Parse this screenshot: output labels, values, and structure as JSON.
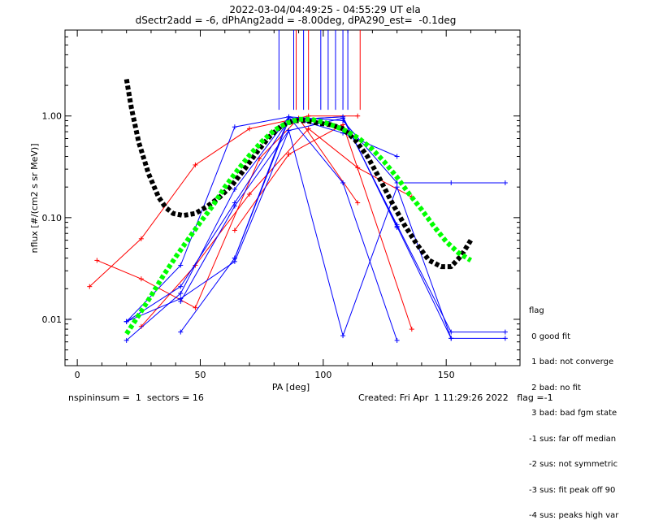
{
  "header": {
    "line1": "2022-03-04/04:49:25 - 04:55:29 UT ela",
    "line2": "dSectr2add = -6, dPhAng2add = -8.00deg, dPA290_est=  -0.1deg"
  },
  "footer": {
    "left": "nspininsum =  1  sectors = 16",
    "right": "Created: Fri Apr  1 11:29:26 2022   flag =-1"
  },
  "legend": {
    "title": "flag",
    "items": [
      " 0 good fit",
      " 1 bad: not converge",
      " 2 bad: no fit",
      " 3 bad: bad fgm state",
      "-1 sus: far off median",
      "-2 sus: not symmetric",
      "-3 sus: fit peak off 90",
      "-4 sus: peaks high var"
    ]
  },
  "colors": {
    "blue": "#0000ff",
    "red": "#ff0000",
    "green": "#00ff00",
    "black": "#000000"
  },
  "chart_data": {
    "type": "line",
    "xlabel": "PA [deg]",
    "ylabel": "nflux [#/(cm2 s sr MeV)]",
    "xlim": [
      -5,
      180
    ],
    "ylim": [
      0.0035,
      7
    ],
    "yscale": "log",
    "xticks": [
      0,
      50,
      100,
      150
    ],
    "yticks": [
      0.01,
      0.1,
      1.0
    ],
    "ytick_labels": [
      "0.01",
      "0.10",
      "1.00"
    ],
    "vlines": {
      "blue": [
        82,
        88,
        92,
        99,
        102,
        105,
        108,
        110
      ],
      "red": [
        89,
        94,
        115
      ]
    },
    "series": [
      {
        "color": "red",
        "x": [
          5,
          26,
          48,
          70,
          94,
          114
        ],
        "y": [
          0.021,
          0.062,
          0.33,
          0.75,
          1.0,
          1.0
        ]
      },
      {
        "color": "red",
        "x": [
          8,
          26,
          48,
          74,
          90,
          114
        ],
        "y": [
          0.038,
          0.025,
          0.013,
          0.38,
          0.95,
          0.14
        ]
      },
      {
        "color": "red",
        "x": [
          26,
          48,
          70,
          94,
          114,
          136
        ],
        "y": [
          0.0085,
          0.034,
          0.17,
          0.75,
          0.31,
          0.16
        ]
      },
      {
        "color": "red",
        "x": [
          64,
          86,
          108,
          136
        ],
        "y": [
          0.075,
          0.42,
          0.82,
          0.008
        ]
      },
      {
        "color": "blue",
        "x": [
          20,
          42,
          64,
          86,
          108,
          130
        ],
        "y": [
          0.0095,
          0.034,
          0.78,
          0.98,
          0.68,
          0.4
        ]
      },
      {
        "color": "blue",
        "x": [
          20,
          42,
          64,
          86,
          108,
          130,
          152,
          174
        ],
        "y": [
          0.0062,
          0.018,
          0.19,
          0.98,
          0.9,
          0.22,
          0.22,
          0.22
        ]
      },
      {
        "color": "blue",
        "x": [
          20,
          42,
          64,
          86,
          108,
          130
        ],
        "y": [
          0.0095,
          0.021,
          0.14,
          0.92,
          0.98,
          0.08
        ]
      },
      {
        "color": "blue",
        "x": [
          20,
          42,
          64,
          86,
          108,
          130,
          152,
          174
        ],
        "y": [
          0.0095,
          0.016,
          0.037,
          0.72,
          0.95,
          0.085,
          0.0075,
          0.0075
        ]
      },
      {
        "color": "blue",
        "x": [
          42,
          64,
          86,
          108,
          130
        ],
        "y": [
          0.0075,
          0.04,
          0.98,
          0.22,
          0.0062
        ]
      },
      {
        "color": "blue",
        "x": [
          42,
          64,
          86,
          108,
          130,
          152,
          174
        ],
        "y": [
          0.015,
          0.13,
          0.72,
          0.0069,
          0.2,
          0.0065,
          0.0065
        ]
      },
      {
        "color": "blue",
        "x": [
          64,
          86,
          108,
          130,
          152
        ],
        "y": [
          0.04,
          0.92,
          0.98,
          0.082,
          0.0065
        ]
      }
    ],
    "fits": [
      {
        "color": "black",
        "x": [
          20,
          22,
          25,
          29,
          33,
          36,
          39,
          43,
          48,
          53,
          58,
          63,
          68,
          73,
          78,
          83,
          88,
          93,
          98,
          103,
          108,
          113,
          118,
          123,
          128,
          133,
          138,
          143,
          148,
          152,
          156,
          160
        ],
        "y": [
          2.3,
          1.2,
          0.55,
          0.27,
          0.16,
          0.125,
          0.11,
          0.105,
          0.11,
          0.13,
          0.16,
          0.21,
          0.3,
          0.44,
          0.62,
          0.8,
          0.9,
          0.9,
          0.85,
          0.82,
          0.75,
          0.58,
          0.4,
          0.24,
          0.14,
          0.085,
          0.055,
          0.038,
          0.033,
          0.033,
          0.042,
          0.06
        ]
      },
      {
        "color": "green",
        "x": [
          20,
          25,
          30,
          35,
          40,
          45,
          50,
          55,
          60,
          65,
          70,
          75,
          80,
          85,
          90,
          95,
          100,
          105,
          110,
          115,
          120,
          125,
          130,
          135,
          140,
          145,
          150,
          155,
          160
        ],
        "y": [
          0.0072,
          0.011,
          0.017,
          0.027,
          0.041,
          0.061,
          0.09,
          0.13,
          0.2,
          0.29,
          0.41,
          0.56,
          0.72,
          0.85,
          0.93,
          0.93,
          0.87,
          0.79,
          0.7,
          0.59,
          0.47,
          0.35,
          0.25,
          0.17,
          0.12,
          0.082,
          0.058,
          0.045,
          0.038
        ]
      }
    ]
  }
}
